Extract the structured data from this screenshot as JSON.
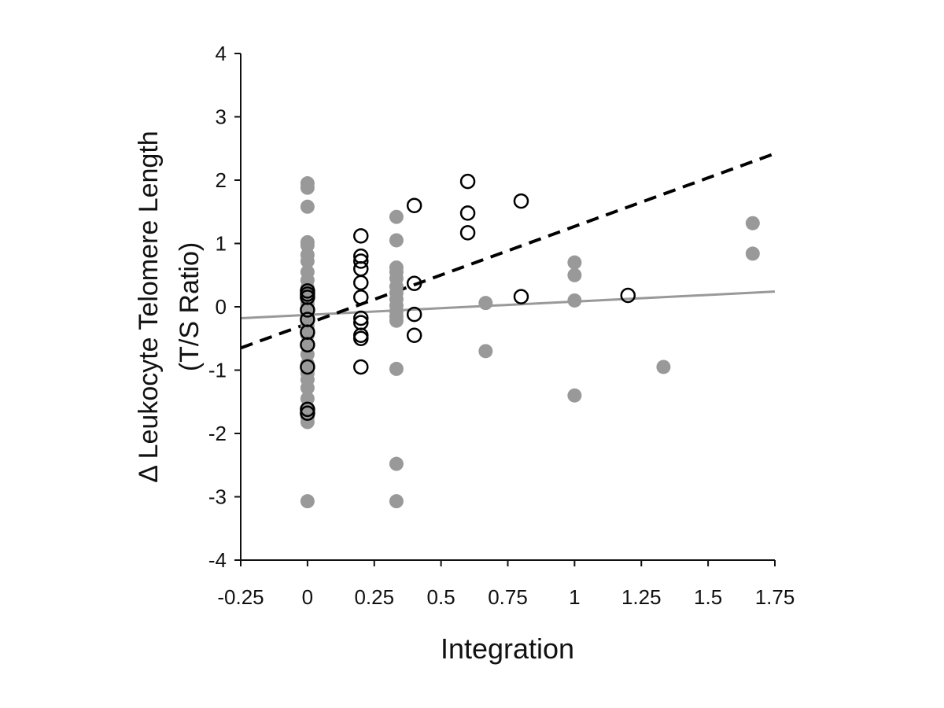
{
  "chart_data": {
    "type": "scatter",
    "title": "",
    "xlabel": "Integration",
    "ylabel_line1": "Δ Leukocyte Telomere Length",
    "ylabel_line2": "(T/S Ratio)",
    "xlim": [
      -0.25,
      1.75
    ],
    "ylim": [
      -4,
      4
    ],
    "x_tick_values": [
      -0.25,
      0,
      0.25,
      0.5,
      0.75,
      1,
      1.25,
      1.5,
      1.75
    ],
    "x_tick_labels": [
      "-0.25",
      "0",
      "0.25",
      "0.5",
      "0.75",
      "1",
      "1.25",
      "1.5",
      "1.75"
    ],
    "y_tick_values": [
      4,
      3,
      2,
      1,
      0,
      -1,
      -2,
      -3,
      -4
    ],
    "y_tick_labels": [
      "4",
      "3",
      "2",
      "1",
      "0",
      "-1",
      "-2",
      "-3",
      "-4"
    ],
    "grid": false,
    "legend": "none",
    "series": [
      {
        "marker": "filled-circle",
        "color": "#999999",
        "points": [
          [
            0,
            1.95
          ],
          [
            0,
            1.88
          ],
          [
            0,
            1.58
          ],
          [
            0,
            1.02
          ],
          [
            0,
            0.97
          ],
          [
            0,
            0.82
          ],
          [
            0,
            0.72
          ],
          [
            0,
            0.55
          ],
          [
            0,
            0.42
          ],
          [
            0,
            0.3
          ],
          [
            0,
            0.25
          ],
          [
            0,
            0.15
          ],
          [
            0,
            0.05
          ],
          [
            0,
            -0.05
          ],
          [
            0,
            -0.15
          ],
          [
            0,
            -0.3
          ],
          [
            0,
            -0.45
          ],
          [
            0,
            -0.6
          ],
          [
            0,
            -0.75
          ],
          [
            0,
            -0.9
          ],
          [
            0,
            -1.05
          ],
          [
            0,
            -1.15
          ],
          [
            0,
            -1.28
          ],
          [
            0,
            -1.45
          ],
          [
            0,
            -1.6
          ],
          [
            0,
            -1.75
          ],
          [
            0,
            -1.82
          ],
          [
            0,
            -3.07
          ],
          [
            0.333,
            1.42
          ],
          [
            0.333,
            1.05
          ],
          [
            0.333,
            0.62
          ],
          [
            0.333,
            0.55
          ],
          [
            0.333,
            0.45
          ],
          [
            0.333,
            0.32
          ],
          [
            0.333,
            0.22
          ],
          [
            0.333,
            0.12
          ],
          [
            0.333,
            0.02
          ],
          [
            0.333,
            -0.07
          ],
          [
            0.333,
            -0.15
          ],
          [
            0.333,
            -0.22
          ],
          [
            0.333,
            -0.98
          ],
          [
            0.333,
            -2.48
          ],
          [
            0.333,
            -3.07
          ],
          [
            0.667,
            0.06
          ],
          [
            0.667,
            -0.7
          ],
          [
            1,
            0.7
          ],
          [
            1,
            0.5
          ],
          [
            1,
            0.1
          ],
          [
            1,
            -1.4
          ],
          [
            1.333,
            -0.95
          ],
          [
            1.667,
            1.32
          ],
          [
            1.667,
            0.84
          ]
        ],
        "trendline": {
          "style": "solid",
          "color": "#999999",
          "from": [
            -0.25,
            -0.18
          ],
          "to": [
            1.75,
            0.24
          ]
        }
      },
      {
        "marker": "open-circle",
        "color": "#000000",
        "points": [
          [
            0,
            0.25
          ],
          [
            0,
            0.2
          ],
          [
            0,
            0.15
          ],
          [
            0,
            -0.05
          ],
          [
            0,
            -0.2
          ],
          [
            0,
            -0.4
          ],
          [
            0,
            -0.6
          ],
          [
            0,
            -0.95
          ],
          [
            0,
            -1.62
          ],
          [
            0,
            -1.68
          ],
          [
            0.2,
            1.12
          ],
          [
            0.2,
            0.8
          ],
          [
            0.2,
            0.72
          ],
          [
            0.2,
            0.6
          ],
          [
            0.2,
            0.38
          ],
          [
            0.2,
            0.15
          ],
          [
            0.2,
            -0.18
          ],
          [
            0.2,
            -0.25
          ],
          [
            0.2,
            -0.45
          ],
          [
            0.2,
            -0.5
          ],
          [
            0.2,
            -0.95
          ],
          [
            0.4,
            1.6
          ],
          [
            0.4,
            0.37
          ],
          [
            0.4,
            -0.12
          ],
          [
            0.4,
            -0.45
          ],
          [
            0.6,
            1.98
          ],
          [
            0.6,
            1.48
          ],
          [
            0.6,
            1.17
          ],
          [
            0.8,
            1.67
          ],
          [
            0.8,
            0.16
          ],
          [
            1.2,
            0.18
          ]
        ],
        "trendline": {
          "style": "dashed",
          "color": "#000000",
          "from": [
            -0.25,
            -0.65
          ],
          "to": [
            1.75,
            2.42
          ]
        }
      }
    ]
  }
}
